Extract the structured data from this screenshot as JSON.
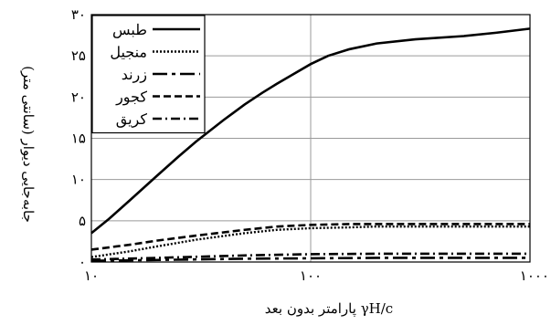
{
  "chart_data": {
    "type": "line",
    "title": "",
    "xlabel": "پارامتر بدون بعد γH/c",
    "ylabel": "جابه‌جایی دیوار (سانتی متر)",
    "xscale": "log",
    "xlim": [
      10,
      1000
    ],
    "ylim": [
      0,
      30
    ],
    "x_ticks": [
      10,
      100,
      1000
    ],
    "x_tick_labels": [
      "۱۰",
      "۱۰۰",
      "۱۰۰۰"
    ],
    "y_ticks": [
      0,
      5,
      10,
      15,
      20,
      25,
      30
    ],
    "y_tick_labels": [
      "۰",
      "۵",
      "۱۰",
      "۱۵",
      "۲۰",
      "۲۵",
      "۳۰"
    ],
    "grid": true,
    "legend_position": "top-left",
    "series": [
      {
        "name": "طبس",
        "dash": "solid",
        "x": [
          10,
          12,
          15,
          20,
          25,
          30,
          40,
          50,
          60,
          70,
          80,
          100,
          120,
          150,
          200,
          300,
          500,
          700,
          1000
        ],
        "y": [
          3.5,
          5.2,
          7.5,
          10.5,
          12.8,
          14.6,
          17.2,
          19.1,
          20.5,
          21.6,
          22.5,
          24.0,
          25.0,
          25.8,
          26.5,
          27.0,
          27.4,
          27.8,
          28.3
        ]
      },
      {
        "name": "منجیل",
        "dash": "dot",
        "x": [
          10,
          15,
          20,
          30,
          50,
          70,
          100,
          150,
          200,
          300,
          500,
          1000
        ],
        "y": [
          0.6,
          1.3,
          1.9,
          2.7,
          3.5,
          3.9,
          4.1,
          4.2,
          4.3,
          4.3,
          4.3,
          4.3
        ]
      },
      {
        "name": "زرند",
        "dash": "longdash",
        "x": [
          10,
          20,
          50,
          100,
          200,
          500,
          1000
        ],
        "y": [
          0.15,
          0.25,
          0.4,
          0.45,
          0.5,
          0.5,
          0.5
        ]
      },
      {
        "name": "کجور",
        "dash": "dash",
        "x": [
          10,
          15,
          20,
          30,
          50,
          70,
          100,
          150,
          200,
          300,
          500,
          1000
        ],
        "y": [
          1.5,
          2.1,
          2.6,
          3.2,
          3.9,
          4.3,
          4.5,
          4.6,
          4.6,
          4.6,
          4.6,
          4.6
        ]
      },
      {
        "name": "کریق",
        "dash": "dashdot",
        "x": [
          10,
          20,
          50,
          100,
          200,
          500,
          1000
        ],
        "y": [
          0.3,
          0.5,
          0.8,
          0.95,
          1.0,
          1.0,
          1.0
        ]
      }
    ]
  }
}
